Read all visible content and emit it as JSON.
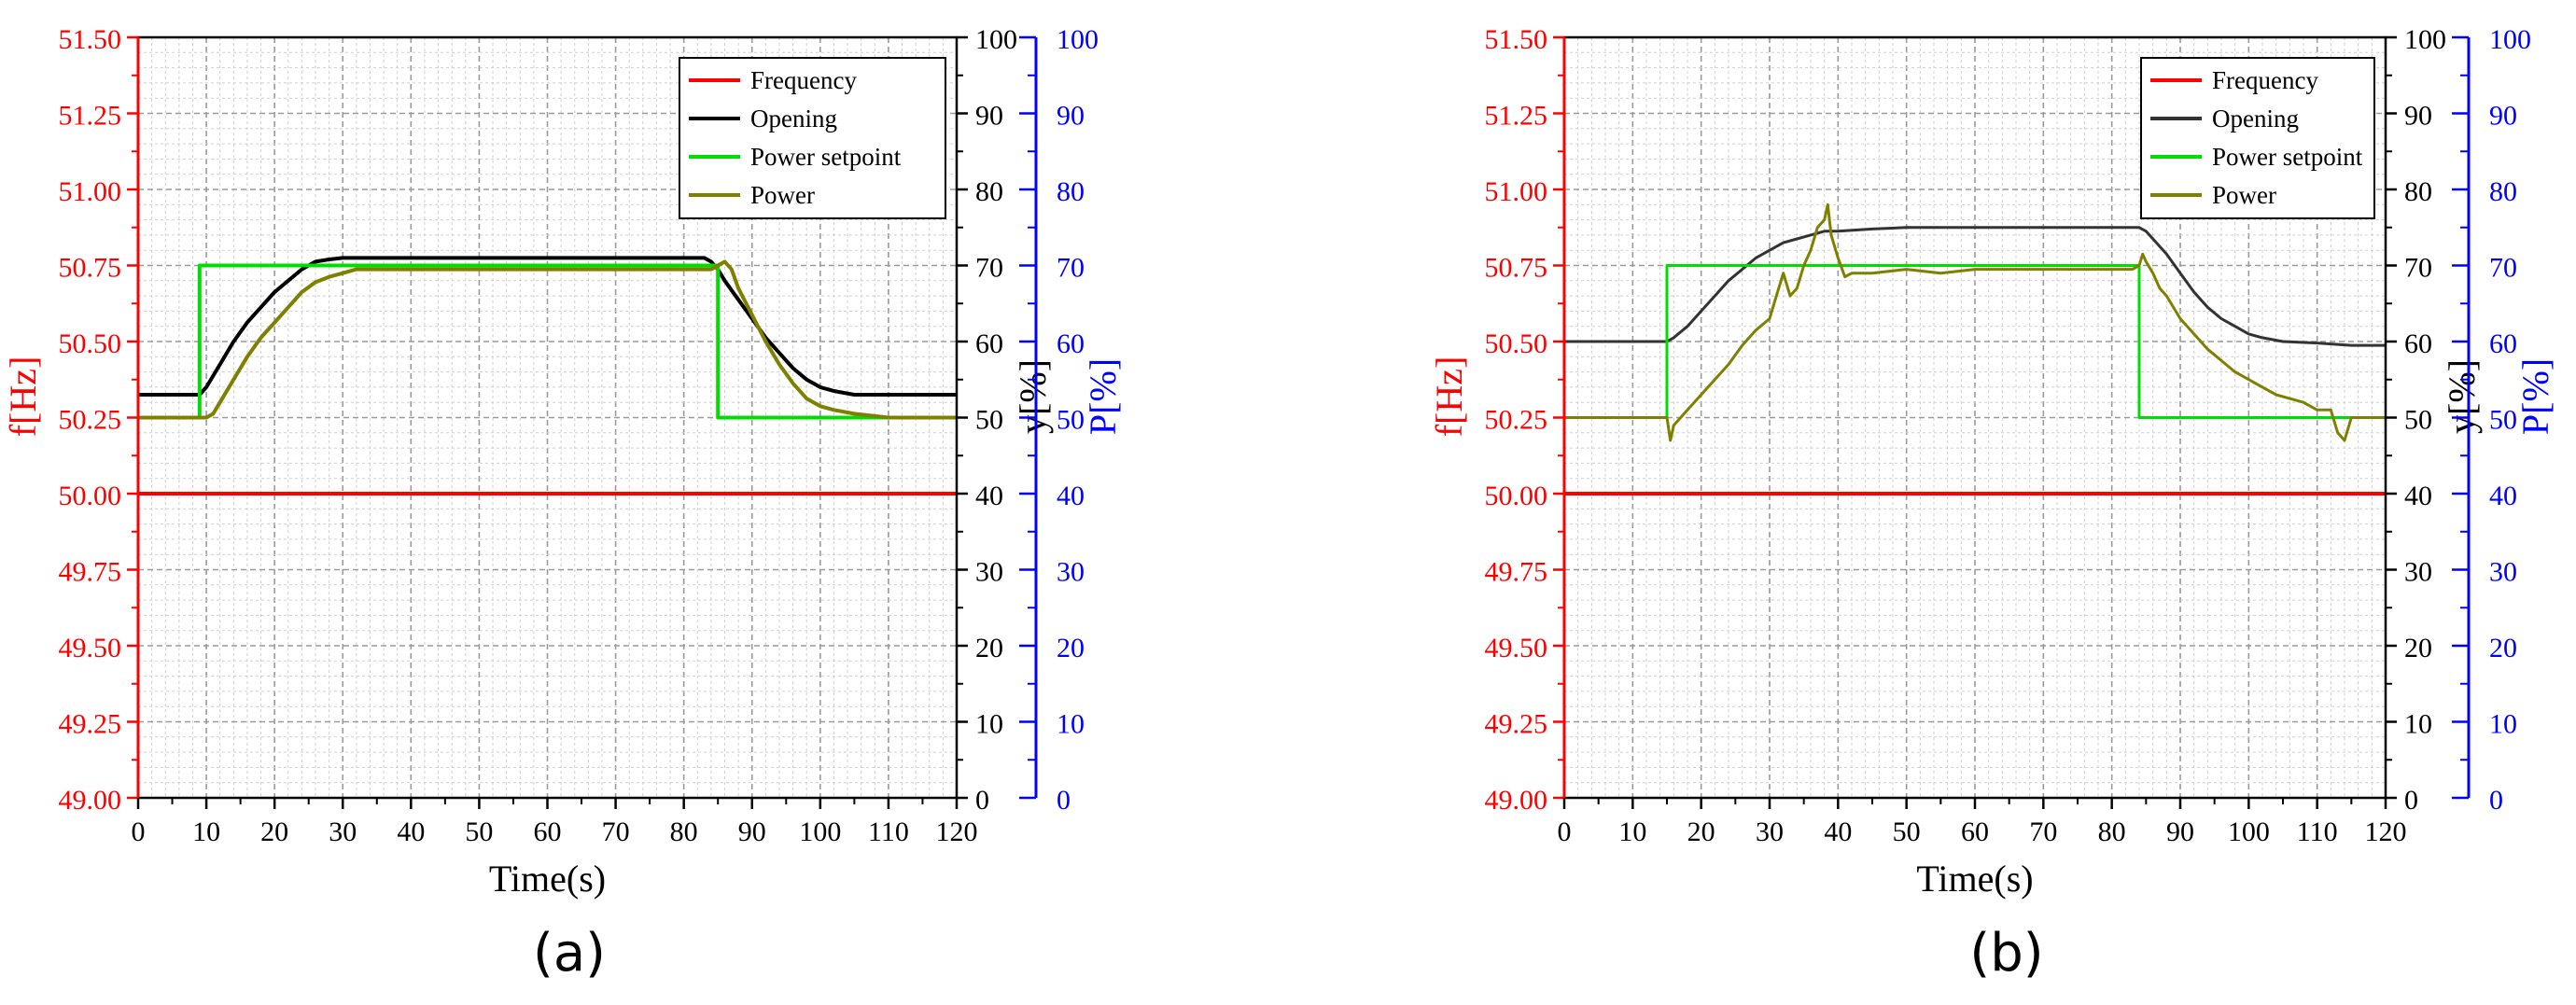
{
  "figure": {
    "panels": [
      {
        "caption": "(a)"
      },
      {
        "caption": "(b)"
      }
    ]
  },
  "chart_data": [
    {
      "type": "line",
      "panel": "(a)",
      "xlabel": "Time(s)",
      "xlim": [
        0,
        120
      ],
      "xticks": [
        "0",
        "10",
        "20",
        "30",
        "40",
        "50",
        "60",
        "70",
        "80",
        "90",
        "100",
        "110",
        "120"
      ],
      "left_axis": {
        "label": "f[Hz]",
        "lim": [
          49.0,
          51.5
        ],
        "color": "#ff0000",
        "ticks": [
          "49.00",
          "49.25",
          "49.50",
          "49.75",
          "50.00",
          "50.25",
          "50.50",
          "50.75",
          "51.00",
          "51.25",
          "51.50"
        ]
      },
      "mid_axis": {
        "label": "y[%]",
        "lim": [
          0,
          100
        ],
        "color": "#000000",
        "ticks": [
          "0",
          "10",
          "20",
          "30",
          "40",
          "50",
          "60",
          "70",
          "80",
          "90",
          "100"
        ]
      },
      "right_axis": {
        "label": "P[%]",
        "lim": [
          0,
          100
        ],
        "color": "#0000ff",
        "ticks": [
          "0",
          "10",
          "20",
          "30",
          "40",
          "50",
          "60",
          "70",
          "80",
          "90",
          "100"
        ]
      },
      "grid": true,
      "legend_position": "top-right",
      "series": [
        {
          "name": "Frequency",
          "axis": "left",
          "color": "#ff0000",
          "x": [
            0,
            120
          ],
          "y": [
            50.0,
            50.0
          ]
        },
        {
          "name": "Opening",
          "axis": "mid",
          "color": "#000000",
          "x": [
            0,
            9,
            10,
            12,
            14,
            16,
            18,
            20,
            22,
            24,
            26,
            28,
            30,
            35,
            40,
            60,
            80,
            83,
            84,
            85,
            86,
            88,
            90,
            92,
            94,
            96,
            98,
            100,
            102,
            105,
            110,
            115,
            120
          ],
          "y": [
            53,
            53,
            54,
            57,
            60,
            62.5,
            64.5,
            66.5,
            68,
            69.5,
            70.5,
            70.8,
            71,
            71,
            71,
            71,
            71,
            71,
            70.5,
            69.5,
            68,
            65.5,
            63,
            60.5,
            58.5,
            56.5,
            55,
            54,
            53.5,
            53,
            53,
            53,
            53
          ]
        },
        {
          "name": "Power setpoint",
          "axis": "right",
          "color": "#00dd00",
          "x": [
            0,
            9,
            9,
            85,
            85,
            120
          ],
          "y": [
            50,
            50,
            70,
            70,
            50,
            50
          ]
        },
        {
          "name": "Power",
          "axis": "right",
          "color": "#808000",
          "x": [
            0,
            9,
            10,
            11,
            12,
            14,
            16,
            18,
            20,
            22,
            24,
            26,
            28,
            30,
            32,
            35,
            40,
            50,
            60,
            70,
            80,
            84,
            85,
            86,
            87,
            88,
            90,
            92,
            94,
            96,
            98,
            100,
            102,
            105,
            110,
            115,
            120
          ],
          "y": [
            50,
            50,
            50,
            50.5,
            52,
            55,
            58,
            60.5,
            62.5,
            64.5,
            66.5,
            67.8,
            68.5,
            69,
            69.5,
            69.5,
            69.5,
            69.5,
            69.5,
            69.5,
            69.5,
            69.5,
            70,
            70.5,
            69.5,
            67,
            63.5,
            60,
            57,
            54.5,
            52.5,
            51.5,
            51,
            50.5,
            50,
            50,
            50
          ]
        }
      ]
    },
    {
      "type": "line",
      "panel": "(b)",
      "xlabel": "Time(s)",
      "xlim": [
        0,
        120
      ],
      "xticks": [
        "0",
        "10",
        "20",
        "30",
        "40",
        "50",
        "60",
        "70",
        "80",
        "90",
        "100",
        "110",
        "120"
      ],
      "left_axis": {
        "label": "f[Hz]",
        "lim": [
          49.0,
          51.5
        ],
        "color": "#ff0000",
        "ticks": [
          "49.00",
          "49.25",
          "49.50",
          "49.75",
          "50.00",
          "50.25",
          "50.50",
          "50.75",
          "51.00",
          "51.25",
          "51.50"
        ]
      },
      "mid_axis": {
        "label": "y[%]",
        "lim": [
          0,
          100
        ],
        "color": "#000000",
        "ticks": [
          "0",
          "10",
          "20",
          "30",
          "40",
          "50",
          "60",
          "70",
          "80",
          "90",
          "100"
        ]
      },
      "right_axis": {
        "label": "P[%]",
        "lim": [
          0,
          100
        ],
        "color": "#0000ff",
        "ticks": [
          "0",
          "10",
          "20",
          "30",
          "40",
          "50",
          "60",
          "70",
          "80",
          "90",
          "100"
        ]
      },
      "grid": true,
      "legend_position": "top-right",
      "series": [
        {
          "name": "Frequency",
          "axis": "left",
          "color": "#ff0000",
          "x": [
            0,
            120
          ],
          "y": [
            50.0,
            50.0
          ]
        },
        {
          "name": "Opening",
          "axis": "mid",
          "color": "#333333",
          "x": [
            0,
            15,
            16,
            18,
            20,
            22,
            24,
            26,
            28,
            30,
            32,
            34,
            36,
            38,
            40,
            45,
            50,
            60,
            70,
            80,
            84,
            85,
            86,
            88,
            90,
            92,
            94,
            96,
            98,
            100,
            102,
            105,
            110,
            115,
            120
          ],
          "y": [
            60,
            60,
            60.5,
            62,
            64,
            66,
            68,
            69.5,
            71,
            72,
            73,
            73.5,
            74,
            74.5,
            74.5,
            74.8,
            75,
            75,
            75,
            75,
            75,
            74.5,
            73.5,
            71.5,
            69,
            66.5,
            64.5,
            63,
            62,
            61,
            60.5,
            60,
            59.8,
            59.5,
            59.5
          ]
        },
        {
          "name": "Power setpoint",
          "axis": "right",
          "color": "#00dd00",
          "x": [
            0,
            15,
            15,
            84,
            84,
            120
          ],
          "y": [
            50,
            50,
            70,
            70,
            50,
            50
          ]
        },
        {
          "name": "Power",
          "axis": "right",
          "color": "#808000",
          "x": [
            0,
            15,
            15.5,
            16,
            17,
            18,
            20,
            22,
            24,
            26,
            28,
            30,
            31,
            32,
            33,
            34,
            35,
            36,
            37,
            38,
            38.5,
            39,
            40,
            41,
            42,
            45,
            50,
            55,
            60,
            70,
            80,
            83,
            84,
            84.5,
            85,
            86,
            87,
            88,
            90,
            92,
            94,
            96,
            98,
            100,
            102,
            104,
            106,
            108,
            110,
            112,
            113,
            114,
            115,
            116,
            120
          ],
          "y": [
            50,
            50,
            47,
            49,
            50,
            51,
            53,
            55,
            57,
            59.5,
            61.5,
            63,
            66,
            69,
            66,
            67,
            70,
            72,
            75,
            76,
            78,
            74,
            71,
            68.5,
            69,
            69,
            69.5,
            69,
            69.5,
            69.5,
            69.5,
            69.5,
            70,
            71.5,
            70.5,
            69,
            67,
            66,
            63,
            61,
            59,
            57.5,
            56,
            55,
            54,
            53,
            52.5,
            52,
            51,
            51,
            48,
            47,
            50,
            50,
            50
          ]
        }
      ]
    }
  ]
}
